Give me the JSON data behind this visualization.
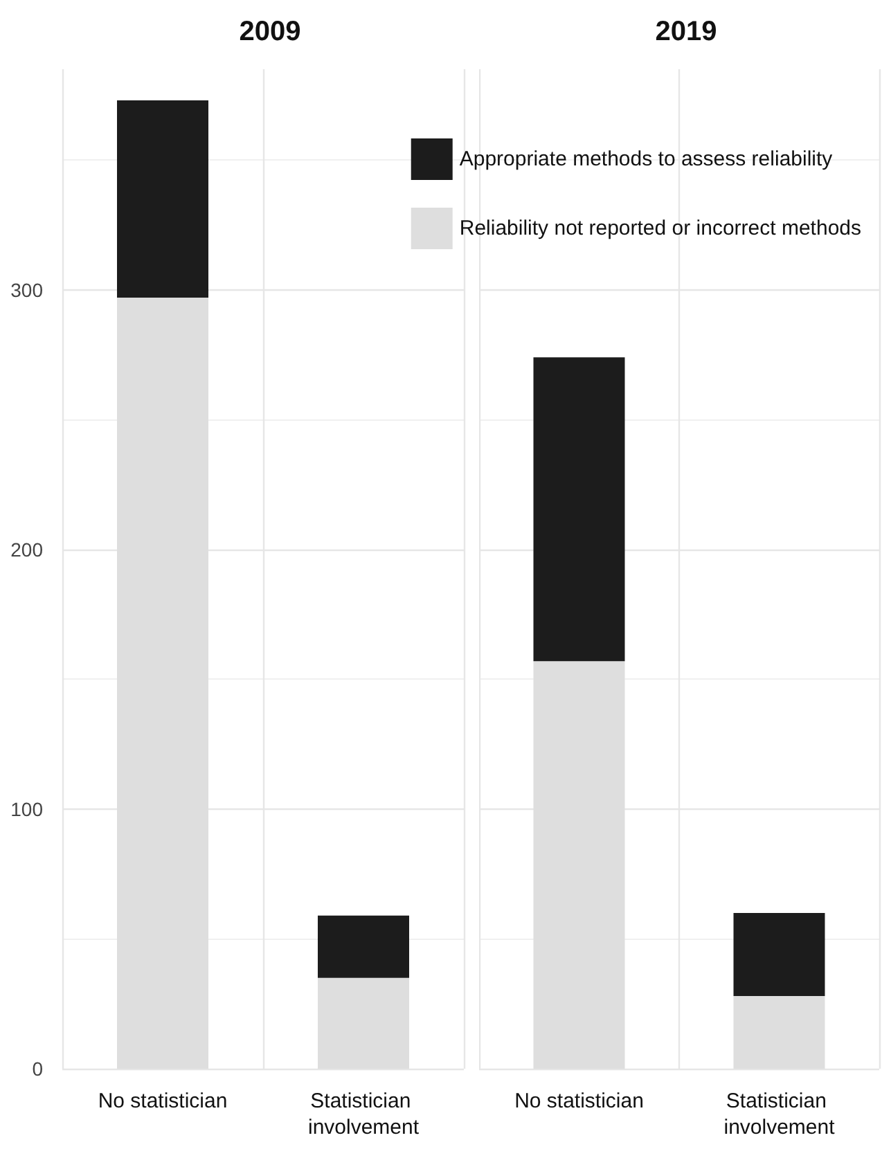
{
  "chart_data": [
    {
      "type": "bar",
      "title": "2009",
      "categories": [
        "No statistician",
        "Statistician involvement"
      ],
      "stacked": true,
      "series": [
        {
          "name": "Reliability not reported or incorrect methods",
          "color": "#dedede",
          "values": [
            297,
            35
          ]
        },
        {
          "name": "Appropriate methods to assess reliability",
          "color": "#1c1c1c",
          "values": [
            76,
            24
          ]
        }
      ],
      "ylim": [
        0,
        385
      ],
      "yticks": [
        0,
        100,
        200,
        300
      ],
      "grid": true,
      "legend": "top right"
    },
    {
      "type": "bar",
      "title": "2019",
      "categories": [
        "No statistician",
        "Statistician involvement"
      ],
      "stacked": true,
      "series": [
        {
          "color": "#dedede",
          "values": [
            157,
            28
          ]
        },
        {
          "color": "#1c1c1c",
          "values": [
            117,
            32
          ]
        }
      ],
      "ylim": [
        0,
        385
      ],
      "yticks": [
        0,
        100,
        200,
        300
      ],
      "grid": true,
      "tick_labels": "x"
    }
  ]
}
